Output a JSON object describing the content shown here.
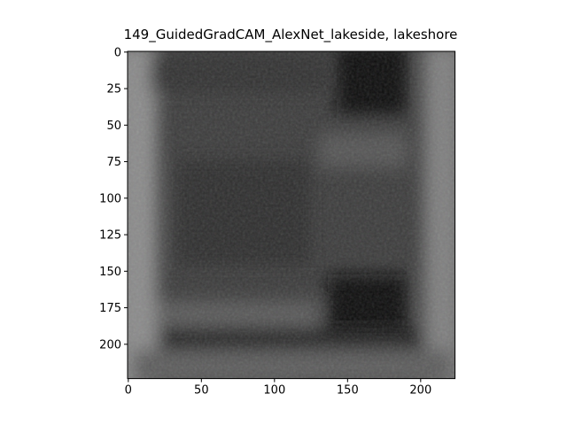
{
  "chart_data": {
    "type": "image",
    "title": "149_GuidedGradCAM_AlexNet_lakeside, lakeshore",
    "xlim": [
      -0.5,
      223.5
    ],
    "ylim": [
      223.5,
      -0.5
    ],
    "xticks": [
      0,
      50,
      100,
      150,
      200
    ],
    "yticks": [
      0,
      25,
      50,
      75,
      100,
      125,
      150,
      175,
      200
    ]
  }
}
